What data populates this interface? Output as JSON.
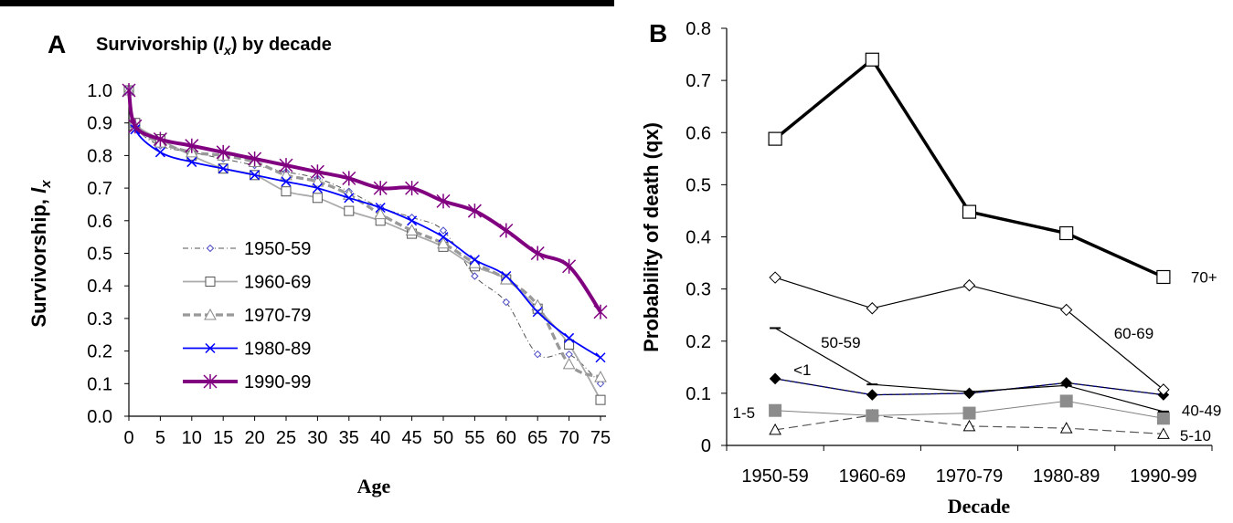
{
  "figure": {
    "top_bar_color": "#000000"
  },
  "chart_data": [
    {
      "panel": "A",
      "type": "line",
      "title": "Survivorship (lx) by decade",
      "title_parts": {
        "prefix": "Survivorship (",
        "symbol": "l",
        "subscript": "x",
        "suffix": ") by decade"
      },
      "xlabel": "Age",
      "ylabel": "Survivorship, lx",
      "ylabel_parts": {
        "prefix": "Survivorship, ",
        "symbol": "l",
        "subscript": "x"
      },
      "xlim": [
        0,
        75
      ],
      "ylim": [
        0,
        1.0
      ],
      "x_ticks": [
        0,
        5,
        10,
        15,
        20,
        25,
        30,
        35,
        40,
        45,
        50,
        55,
        60,
        65,
        70,
        75
      ],
      "y_ticks": [
        "0.0",
        "0.1",
        "0.2",
        "0.3",
        "0.4",
        "0.5",
        "0.6",
        "0.7",
        "0.8",
        "0.9",
        "1.0"
      ],
      "legend_position": "center-left",
      "x": [
        0,
        1,
        5,
        10,
        15,
        20,
        25,
        30,
        35,
        40,
        45,
        50,
        55,
        60,
        65,
        70,
        75
      ],
      "series": [
        {
          "name": "1950-59",
          "color": "#555555",
          "style": "dashdot",
          "marker": "diamond-small",
          "values": [
            1.0,
            0.89,
            0.83,
            0.81,
            0.79,
            0.77,
            0.75,
            0.73,
            0.69,
            0.64,
            0.61,
            0.57,
            0.43,
            0.35,
            0.19,
            0.19,
            0.1
          ]
        },
        {
          "name": "1960-69",
          "color": "#aaaaaa",
          "style": "solid",
          "marker": "square",
          "values": [
            1.0,
            0.9,
            0.85,
            0.8,
            0.76,
            0.74,
            0.69,
            0.67,
            0.63,
            0.6,
            0.56,
            0.52,
            0.46,
            0.42,
            0.33,
            0.22,
            0.05
          ]
        },
        {
          "name": "1970-79",
          "color": "#999999",
          "style": "dashed",
          "marker": "triangle",
          "values": [
            1.0,
            0.89,
            0.84,
            0.81,
            0.8,
            0.78,
            0.74,
            0.72,
            0.68,
            0.62,
            0.57,
            0.53,
            0.47,
            0.42,
            0.34,
            0.16,
            0.12
          ]
        },
        {
          "name": "1980-89",
          "color": "#0000ff",
          "style": "solid",
          "marker": "x",
          "values": [
            1.0,
            0.88,
            0.81,
            0.78,
            0.76,
            0.74,
            0.72,
            0.7,
            0.67,
            0.64,
            0.6,
            0.55,
            0.48,
            0.43,
            0.32,
            0.24,
            0.18
          ]
        },
        {
          "name": "1990-99",
          "color": "#800080",
          "style": "solid-thick",
          "marker": "star",
          "values": [
            1.0,
            0.89,
            0.85,
            0.83,
            0.81,
            0.79,
            0.77,
            0.75,
            0.73,
            0.7,
            0.7,
            0.66,
            0.63,
            0.57,
            0.5,
            0.46,
            0.32
          ]
        }
      ]
    },
    {
      "panel": "B",
      "type": "line",
      "title": "",
      "xlabel": "Decade",
      "ylabel": "Probability of death (qx)",
      "ylim": [
        0,
        0.8
      ],
      "y_ticks": [
        "0",
        "0.1",
        "0.2",
        "0.3",
        "0.4",
        "0.5",
        "0.6",
        "0.7",
        "0.8"
      ],
      "categories": [
        "1950-59",
        "1960-69",
        "1970-79",
        "1980-89",
        "1990-99"
      ],
      "series": [
        {
          "name": "70+",
          "color": "#000000",
          "style": "solid-thick",
          "marker": "square-open",
          "values": [
            0.588,
            0.74,
            0.448,
            0.407,
            0.323
          ]
        },
        {
          "name": "60-69",
          "color": "#000000",
          "style": "solid",
          "marker": "diamond-open",
          "values": [
            0.322,
            0.263,
            0.307,
            0.26,
            0.107
          ]
        },
        {
          "name": "50-59",
          "color": "#000000",
          "style": "solid",
          "marker": "dash",
          "values": [
            0.225,
            0.117,
            0.103,
            0.115,
            0.065
          ]
        },
        {
          "name": "<1",
          "color": "#00008b",
          "style": "dashed",
          "marker": "diamond-filled",
          "values": [
            0.128,
            0.097,
            0.1,
            0.12,
            0.097
          ]
        },
        {
          "name": "40-49",
          "color": "#000000",
          "style": "solid",
          "marker": "diamond-filled",
          "values": [
            0.128,
            0.097,
            0.1,
            0.12,
            0.097
          ]
        },
        {
          "name": "1-5",
          "color": "#808080",
          "style": "solid",
          "marker": "square-gray",
          "values": [
            0.067,
            0.057,
            0.062,
            0.085,
            0.052
          ]
        },
        {
          "name": "5-10",
          "color": "#555555",
          "style": "long-dash",
          "marker": "triangle-open",
          "values": [
            0.03,
            0.058,
            0.037,
            0.033,
            0.022
          ]
        }
      ]
    }
  ]
}
